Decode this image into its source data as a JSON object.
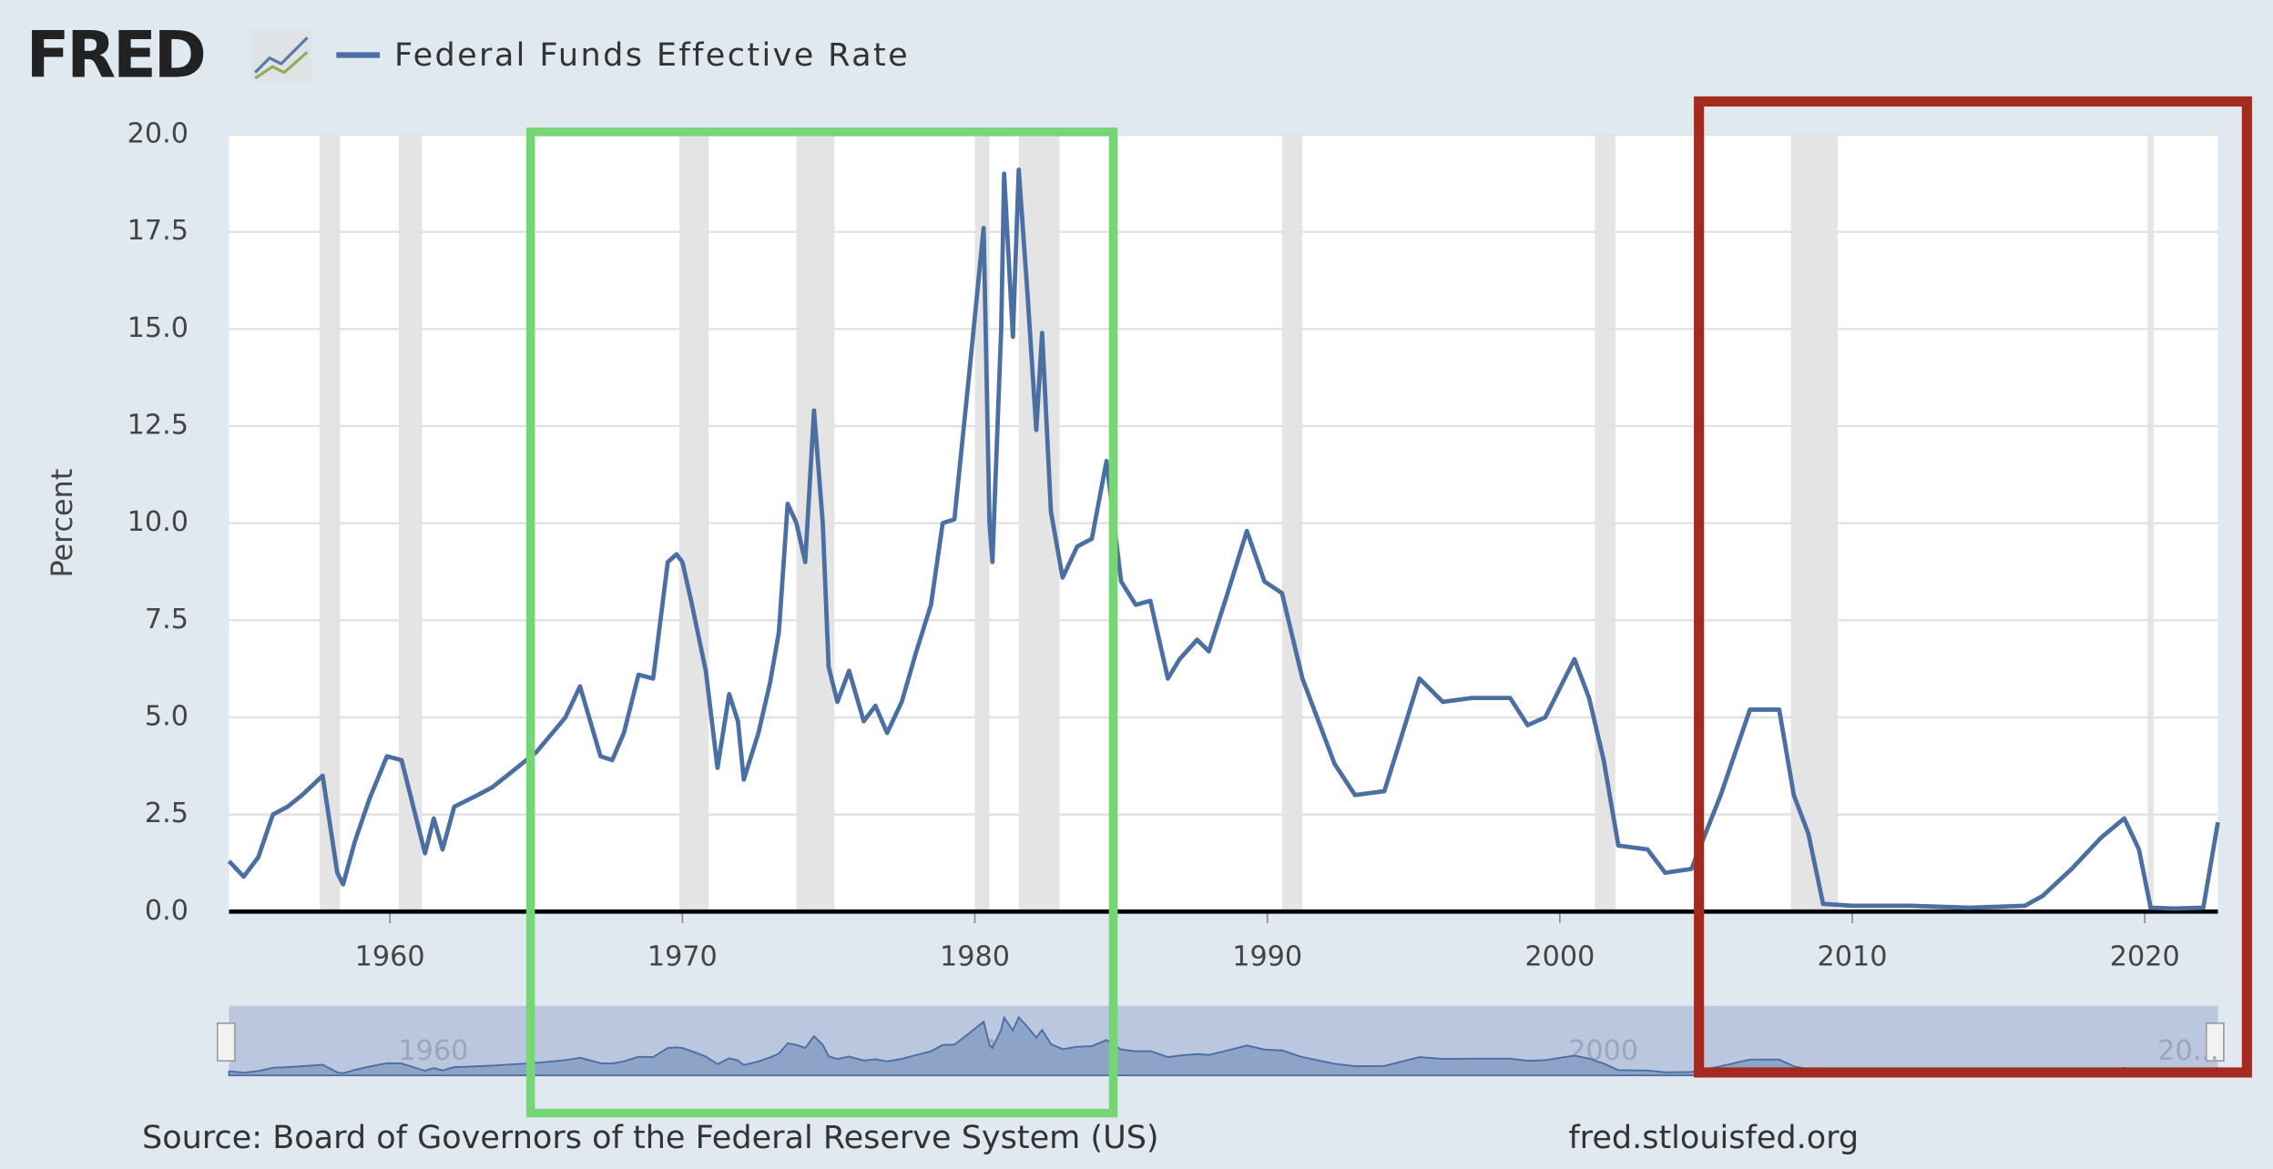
{
  "chart_data": {
    "type": "line",
    "logo": "FRED",
    "y_label": "Percent",
    "source": "Source: Board of Governors of the Federal Reserve System (US)",
    "url": "fred.stlouisfed.org",
    "series": [
      {
        "name": "Federal Funds Effective Rate",
        "color": "#4c6fa3",
        "x": [
          1954.5,
          1955,
          1955.5,
          1956,
          1956.5,
          1957,
          1957.7,
          1958.2,
          1958.4,
          1958.8,
          1959.3,
          1959.9,
          1960.4,
          1960.9,
          1961.2,
          1961.5,
          1961.8,
          1962.2,
          1963,
          1963.5,
          1964,
          1965,
          1966,
          1966.5,
          1967.2,
          1967.6,
          1968,
          1968.5,
          1969,
          1969.5,
          1969.8,
          1970,
          1970.3,
          1970.8,
          1971.2,
          1971.6,
          1971.9,
          1972.1,
          1972.6,
          1973,
          1973.3,
          1973.6,
          1973.9,
          1974.2,
          1974.5,
          1974.8,
          1975,
          1975.3,
          1975.7,
          1976.2,
          1976.6,
          1977,
          1977.5,
          1978,
          1978.5,
          1978.9,
          1979.3,
          1979.8,
          1980.3,
          1980.5,
          1980.6,
          1980.9,
          1981,
          1981.3,
          1981.5,
          1981.8,
          1982.1,
          1982.3,
          1982.6,
          1983,
          1983.5,
          1984,
          1984.5,
          1985,
          1985.5,
          1986,
          1986.6,
          1987,
          1987.6,
          1988,
          1988.6,
          1989.3,
          1989.9,
          1990.5,
          1991.2,
          1991.8,
          1992.3,
          1993,
          1994,
          1994.5,
          1995.2,
          1996,
          1997,
          1998.3,
          1998.9,
          1999.5,
          2000.5,
          2001,
          2001.5,
          2002,
          2003,
          2003.6,
          2004.5,
          2005.5,
          2006.5,
          2007.5,
          2008,
          2008.5,
          2009,
          2010,
          2012,
          2014,
          2015.9,
          2016.5,
          2017.5,
          2018.5,
          2019.3,
          2019.8,
          2020.2,
          2021,
          2022,
          2022.5
        ],
        "values": [
          1.3,
          0.9,
          1.4,
          2.5,
          2.7,
          3.0,
          3.5,
          1.0,
          0.7,
          1.8,
          2.9,
          4.0,
          3.9,
          2.4,
          1.5,
          2.4,
          1.6,
          2.7,
          3.0,
          3.2,
          3.5,
          4.1,
          5.0,
          5.8,
          4.0,
          3.9,
          4.6,
          6.1,
          6.0,
          9.0,
          9.2,
          9.0,
          8.0,
          6.2,
          3.7,
          5.6,
          4.9,
          3.4,
          4.6,
          5.9,
          7.2,
          10.5,
          10.0,
          9.0,
          12.9,
          10.0,
          6.3,
          5.4,
          6.2,
          4.9,
          5.3,
          4.6,
          5.4,
          6.7,
          7.9,
          10.0,
          10.1,
          13.8,
          17.6,
          10.0,
          9.0,
          15.0,
          19.0,
          14.8,
          19.1,
          15.9,
          12.4,
          14.9,
          10.3,
          8.6,
          9.4,
          9.6,
          11.6,
          8.5,
          7.9,
          8.0,
          6.0,
          6.5,
          7.0,
          6.7,
          8.1,
          9.8,
          8.5,
          8.2,
          6.0,
          4.8,
          3.8,
          3.0,
          3.1,
          4.3,
          6.0,
          5.4,
          5.5,
          5.5,
          4.8,
          5.0,
          6.5,
          5.5,
          3.9,
          1.7,
          1.6,
          1.0,
          1.1,
          3.0,
          5.2,
          5.2,
          3.0,
          2.0,
          0.2,
          0.15,
          0.15,
          0.1,
          0.15,
          0.4,
          1.1,
          1.9,
          2.4,
          1.6,
          0.1,
          0.08,
          0.1,
          2.3
        ]
      }
    ],
    "recessions": [
      [
        1957.6,
        1958.3
      ],
      [
        1960.3,
        1961.1
      ],
      [
        1969.9,
        1970.9
      ],
      [
        1973.9,
        1975.2
      ],
      [
        1980.0,
        1980.5
      ],
      [
        1981.5,
        1982.9
      ],
      [
        1990.5,
        1991.2
      ],
      [
        2001.2,
        2001.9
      ],
      [
        2007.9,
        2009.5
      ],
      [
        2020.1,
        2020.3
      ]
    ],
    "xlim": [
      1954.5,
      2022.5
    ],
    "xticks": [
      1960,
      1970,
      1980,
      1990,
      2000,
      2010,
      2020
    ],
    "ylim": [
      0,
      20
    ],
    "yticks": [
      {
        "value": 0,
        "label": "0.0"
      },
      2.5,
      {
        "value": 5,
        "label": "5.0"
      },
      7.5,
      {
        "value": 10,
        "label": "10.0"
      },
      12.5,
      {
        "value": 15,
        "label": "15.0"
      },
      17.5,
      {
        "value": 20,
        "label": "20.0"
      }
    ],
    "grid": true,
    "navigator_xticks": [
      1960,
      1980,
      2000,
      {
        "value": 2020,
        "label": "20..."
      }
    ]
  }
}
